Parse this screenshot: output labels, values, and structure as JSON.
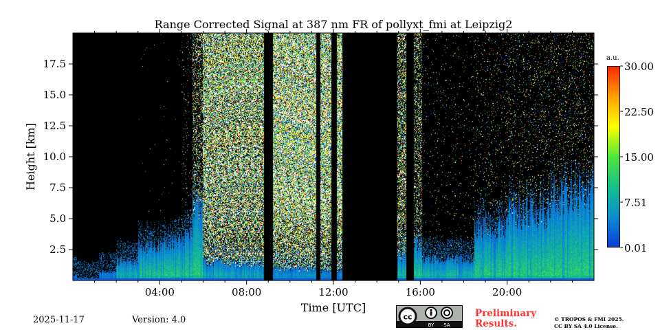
{
  "chart_data": {
    "type": "heatmap",
    "title": "Range Corrected Signal at 387 nm FR of pollyxt_fmi at Leipzig2",
    "xlabel": "Time [UTC]",
    "ylabel": "Height [km]",
    "xlim_hours": [
      0,
      24
    ],
    "ylim_km": [
      0,
      20
    ],
    "x_ticks": [
      "04:00",
      "08:00",
      "12:00",
      "16:00",
      "20:00"
    ],
    "x_tick_hours": [
      4,
      8,
      12,
      16,
      20
    ],
    "y_ticks": [
      "2.5",
      "5.0",
      "7.5",
      "10.0",
      "12.5",
      "15.0",
      "17.5"
    ],
    "y_tick_values": [
      2.5,
      5.0,
      7.5,
      10.0,
      12.5,
      15.0,
      17.5
    ],
    "colorbar": {
      "unit": "a.u.",
      "range": [
        0.01,
        30.0
      ],
      "tick_labels": [
        "0.01",
        "7.51",
        "15.00",
        "22.50",
        "30.00"
      ],
      "colormap": [
        "#0a3fd6",
        "#0a8ed0",
        "#16c08a",
        "#4de83a",
        "#ffff00",
        "#ffa000",
        "#ff2a00"
      ]
    },
    "segments": [
      {
        "start": 0.0,
        "end": 0.2,
        "regime": "signal",
        "bl_km": 0.5,
        "noise": 0.0
      },
      {
        "start": 0.2,
        "end": 1.2,
        "regime": "signal",
        "bl_km": 0.1,
        "noise": 0.0
      },
      {
        "start": 1.2,
        "end": 2.0,
        "regime": "signal",
        "bl_km": 0.7,
        "noise": 0.0
      },
      {
        "start": 2.0,
        "end": 3.0,
        "regime": "signal",
        "bl_km": 1.6,
        "noise": 0.0
      },
      {
        "start": 3.0,
        "end": 4.0,
        "regime": "signal",
        "bl_km": 2.8,
        "noise": 0.002
      },
      {
        "start": 4.0,
        "end": 5.0,
        "regime": "signal",
        "bl_km": 3.0,
        "noise": 0.002
      },
      {
        "start": 5.0,
        "end": 5.5,
        "regime": "signal",
        "bl_km": 3.6,
        "noise": 0.03
      },
      {
        "start": 5.5,
        "end": 6.0,
        "regime": "signal",
        "bl_km": 6.0,
        "noise": 0.3
      },
      {
        "start": 6.0,
        "end": 8.8,
        "regime": "signal",
        "bl_km": 1.5,
        "noise": 0.75
      },
      {
        "start": 8.8,
        "end": 9.2,
        "regime": "blocked"
      },
      {
        "start": 9.2,
        "end": 11.2,
        "regime": "signal",
        "bl_km": 1.0,
        "noise": 0.85
      },
      {
        "start": 11.2,
        "end": 11.4,
        "regime": "blocked"
      },
      {
        "start": 11.4,
        "end": 11.9,
        "regime": "signal",
        "bl_km": 0.8,
        "noise": 0.85
      },
      {
        "start": 11.9,
        "end": 12.15,
        "regime": "blocked"
      },
      {
        "start": 12.15,
        "end": 12.4,
        "regime": "signal",
        "bl_km": 0.8,
        "noise": 0.85
      },
      {
        "start": 12.4,
        "end": 14.95,
        "regime": "blocked"
      },
      {
        "start": 14.95,
        "end": 15.35,
        "regime": "signal",
        "bl_km": 2.0,
        "noise": 0.5
      },
      {
        "start": 15.35,
        "end": 15.7,
        "regime": "blocked"
      },
      {
        "start": 15.7,
        "end": 16.1,
        "regime": "signal",
        "bl_km": 3.0,
        "noise": 0.3
      },
      {
        "start": 16.1,
        "end": 18.5,
        "regime": "signal",
        "bl_km": 1.8,
        "noise": 0.02
      },
      {
        "start": 18.5,
        "end": 20.0,
        "regime": "signal",
        "bl_km": 4.5,
        "noise": 0.04
      },
      {
        "start": 20.0,
        "end": 22.0,
        "regime": "signal",
        "bl_km": 5.5,
        "noise": 0.06
      },
      {
        "start": 22.0,
        "end": 24.0,
        "regime": "signal",
        "bl_km": 7.0,
        "noise": 0.08
      }
    ]
  },
  "footer": {
    "date": "2025-11-17",
    "version": "Version: 4.0",
    "license_badge": "cc BY SA",
    "cc_by": "BY",
    "cc_sa": "SA",
    "preliminary": [
      "Preliminary",
      "Results."
    ],
    "copyright": [
      "© TROPOS & FMI 2025.",
      "CC BY SA 4.0 License."
    ]
  }
}
